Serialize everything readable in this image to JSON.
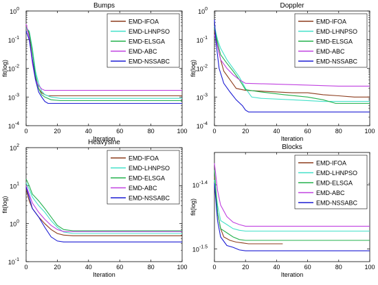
{
  "figure": {
    "background": "#ffffff",
    "series_colors": {
      "EMD-IFOA": "#8b3a1a",
      "EMD-LHNPSO": "#40e0c8",
      "EMD-ELSGA": "#22b14c",
      "EMD-ABC": "#c040e0",
      "EMD-NSSABC": "#1a1ad4"
    }
  },
  "chart_data": [
    {
      "type": "line",
      "title": "Bumps",
      "xlabel": "Iteration",
      "ylabel": "fit(log)",
      "yscale": "log",
      "xlim": [
        0,
        100
      ],
      "ylim": [
        0.0001,
        1
      ],
      "xticks": [
        0,
        20,
        40,
        60,
        80,
        100
      ],
      "xticklabels": [
        "0",
        "20",
        "40",
        "60",
        "80",
        "100"
      ],
      "yticks": [
        0.0001,
        0.001,
        0.01,
        0.1,
        1
      ],
      "yticklabels": [
        [
          "10",
          "-4"
        ],
        [
          "10",
          "-3"
        ],
        [
          "10",
          "-2"
        ],
        [
          "10",
          "-1"
        ],
        [
          "10",
          "0"
        ]
      ],
      "legend": "top-right",
      "series": [
        {
          "name": "EMD-IFOA",
          "x": [
            0,
            2,
            4,
            6,
            8,
            10,
            12,
            14,
            20,
            100
          ],
          "y": [
            0.3,
            0.15,
            0.02,
            0.005,
            0.002,
            0.0014,
            0.0012,
            0.0011,
            0.0011,
            0.0011
          ]
        },
        {
          "name": "EMD-LHNPSO",
          "x": [
            0,
            2,
            4,
            6,
            8,
            10,
            12,
            16,
            22,
            100
          ],
          "y": [
            0.25,
            0.2,
            0.05,
            0.008,
            0.003,
            0.0016,
            0.0012,
            0.001,
            0.0009,
            0.0009
          ]
        },
        {
          "name": "EMD-ELSGA",
          "x": [
            0,
            2,
            4,
            6,
            8,
            10,
            12,
            16,
            22,
            100
          ],
          "y": [
            0.28,
            0.18,
            0.04,
            0.006,
            0.002,
            0.0012,
            0.001,
            0.0008,
            0.00075,
            0.00075
          ]
        },
        {
          "name": "EMD-ABC",
          "x": [
            0,
            2,
            4,
            6,
            8,
            10,
            12,
            100
          ],
          "y": [
            0.35,
            0.12,
            0.015,
            0.004,
            0.0025,
            0.0019,
            0.0017,
            0.0017
          ]
        },
        {
          "name": "EMD-NSSABC",
          "x": [
            0,
            2,
            4,
            6,
            8,
            10,
            12,
            14,
            100
          ],
          "y": [
            0.2,
            0.1,
            0.02,
            0.004,
            0.0015,
            0.001,
            0.0007,
            0.0006,
            0.0006
          ]
        }
      ]
    },
    {
      "type": "line",
      "title": "Doppler",
      "xlabel": "Iteration",
      "ylabel": "fit(log)",
      "yscale": "log",
      "xlim": [
        0,
        100
      ],
      "ylim": [
        0.0001,
        1
      ],
      "xticks": [
        0,
        20,
        40,
        60,
        80,
        100
      ],
      "xticklabels": [
        "0",
        "20",
        "40",
        "60",
        "80",
        "100"
      ],
      "yticks": [
        0.0001,
        0.001,
        0.01,
        0.1,
        1
      ],
      "yticklabels": [
        [
          "10",
          "-4"
        ],
        [
          "10",
          "-3"
        ],
        [
          "10",
          "-2"
        ],
        [
          "10",
          "-1"
        ],
        [
          "10",
          "0"
        ]
      ],
      "legend": "top-right",
      "series": [
        {
          "name": "EMD-IFOA",
          "x": [
            0,
            2,
            4,
            6,
            10,
            14,
            20,
            30,
            50,
            60,
            70,
            80,
            90,
            100
          ],
          "y": [
            0.2,
            0.06,
            0.02,
            0.008,
            0.004,
            0.002,
            0.0017,
            0.0016,
            0.0014,
            0.0014,
            0.0012,
            0.0011,
            0.001,
            0.001
          ]
        },
        {
          "name": "EMD-LHNPSO",
          "x": [
            0,
            2,
            4,
            8,
            12,
            16,
            20,
            24,
            30,
            50,
            70,
            85,
            100
          ],
          "y": [
            0.3,
            0.1,
            0.05,
            0.02,
            0.01,
            0.005,
            0.002,
            0.001,
            0.0009,
            0.0008,
            0.0007,
            0.0007,
            0.0007
          ]
        },
        {
          "name": "EMD-ELSGA",
          "x": [
            0,
            2,
            4,
            8,
            12,
            16,
            20,
            30,
            45,
            60,
            70,
            78,
            100
          ],
          "y": [
            0.25,
            0.08,
            0.03,
            0.015,
            0.008,
            0.004,
            0.0018,
            0.0015,
            0.0012,
            0.001,
            0.0008,
            0.0006,
            0.0006
          ]
        },
        {
          "name": "EMD-ABC",
          "x": [
            0,
            2,
            4,
            8,
            12,
            16,
            20,
            40,
            60,
            80,
            100
          ],
          "y": [
            0.15,
            0.06,
            0.02,
            0.01,
            0.006,
            0.004,
            0.003,
            0.0028,
            0.0026,
            0.0024,
            0.0024
          ]
        },
        {
          "name": "EMD-NSSABC",
          "x": [
            0,
            1,
            3,
            6,
            10,
            14,
            18,
            20,
            22,
            40,
            60,
            100
          ],
          "y": [
            0.5,
            0.08,
            0.01,
            0.003,
            0.0015,
            0.0008,
            0.0005,
            0.00035,
            0.0003,
            0.0003,
            0.0003,
            0.0003
          ]
        }
      ]
    },
    {
      "type": "line",
      "title": "Heavysine",
      "xlabel": "Iteration",
      "ylabel": "fit(log)",
      "yscale": "log",
      "xlim": [
        0,
        100
      ],
      "ylim": [
        0.1,
        100
      ],
      "xticks": [
        0,
        20,
        40,
        60,
        80,
        100
      ],
      "xticklabels": [
        "0",
        "20",
        "40",
        "60",
        "80",
        "100"
      ],
      "yticks": [
        0.1,
        1,
        10,
        100
      ],
      "yticklabels": [
        [
          "10",
          "-1"
        ],
        [
          "10",
          "0"
        ],
        [
          "10",
          "1"
        ],
        [
          "10",
          "2"
        ]
      ],
      "legend": "top-right",
      "series": [
        {
          "name": "EMD-IFOA",
          "x": [
            0,
            2,
            4,
            8,
            12,
            16,
            20,
            24,
            30,
            60,
            100
          ],
          "y": [
            8,
            4,
            2.5,
            1.5,
            1,
            0.7,
            0.55,
            0.5,
            0.48,
            0.48,
            0.48
          ]
        },
        {
          "name": "EMD-LHNPSO",
          "x": [
            0,
            2,
            4,
            8,
            12,
            16,
            20,
            24,
            30,
            100
          ],
          "y": [
            12,
            8,
            5,
            3,
            2,
            1.2,
            0.8,
            0.6,
            0.55,
            0.55
          ]
        },
        {
          "name": "EMD-ELSGA",
          "x": [
            0,
            2,
            4,
            8,
            12,
            16,
            20,
            24,
            30,
            100
          ],
          "y": [
            15,
            10,
            6,
            4,
            2.5,
            1.5,
            0.9,
            0.7,
            0.65,
            0.65
          ]
        },
        {
          "name": "EMD-ABC",
          "x": [
            0,
            2,
            4,
            8,
            12,
            16,
            20,
            24,
            100
          ],
          "y": [
            10,
            6,
            3.5,
            2,
            1.3,
            0.9,
            0.7,
            0.62,
            0.62
          ]
        },
        {
          "name": "EMD-NSSABC",
          "x": [
            0,
            2,
            4,
            8,
            12,
            16,
            20,
            24,
            100
          ],
          "y": [
            9,
            5,
            2.5,
            1.5,
            0.8,
            0.45,
            0.35,
            0.33,
            0.33
          ]
        }
      ]
    },
    {
      "type": "line",
      "title": "Blocks",
      "xlabel": "Iteration",
      "ylabel": "fit(log)",
      "yscale": "log",
      "xlim": [
        0,
        100
      ],
      "ylim": [
        0.0302,
        0.0447
      ],
      "xticks": [
        0,
        20,
        40,
        60,
        80,
        100
      ],
      "xticklabels": [
        "0",
        "20",
        "40",
        "60",
        "80",
        "100"
      ],
      "yticks": [
        0.0316,
        0.0398
      ],
      "yticklabels": [
        [
          "10",
          "-1.5"
        ],
        [
          "10",
          "-1.4"
        ]
      ],
      "legend": "top-right",
      "series": [
        {
          "name": "EMD-IFOA",
          "x": [
            0,
            2,
            4,
            6,
            10,
            14,
            18,
            22,
            44
          ],
          "y": [
            0.041,
            0.036,
            0.034,
            0.033,
            0.0326,
            0.0324,
            0.0323,
            0.0322,
            0.0322
          ]
        },
        {
          "name": "EMD-LHNPSO",
          "x": [
            0,
            2,
            4,
            8,
            12,
            16,
            20,
            100
          ],
          "y": [
            0.0405,
            0.037,
            0.035,
            0.0345,
            0.034,
            0.0338,
            0.0337,
            0.0337
          ]
        },
        {
          "name": "EMD-ELSGA",
          "x": [
            0,
            2,
            4,
            8,
            12,
            16,
            20,
            100
          ],
          "y": [
            0.042,
            0.036,
            0.034,
            0.0335,
            0.033,
            0.0327,
            0.0326,
            0.0326
          ]
        },
        {
          "name": "EMD-ABC",
          "x": [
            0,
            2,
            4,
            8,
            12,
            16,
            20,
            100
          ],
          "y": [
            0.043,
            0.039,
            0.037,
            0.0355,
            0.0348,
            0.0345,
            0.0343,
            0.0343
          ]
        },
        {
          "name": "EMD-NSSABC",
          "x": [
            0,
            2,
            4,
            8,
            12,
            16,
            20,
            100
          ],
          "y": [
            0.04,
            0.035,
            0.033,
            0.032,
            0.0318,
            0.0315,
            0.0314,
            0.0314
          ]
        }
      ]
    }
  ]
}
